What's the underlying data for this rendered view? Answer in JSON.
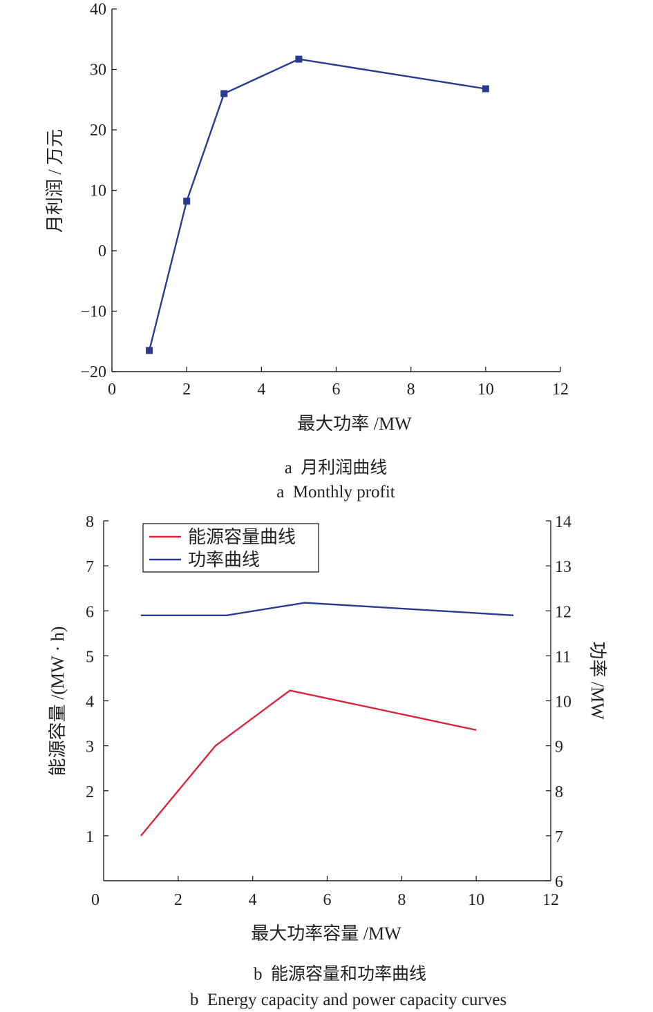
{
  "chart_data": [
    {
      "type": "line",
      "caption_cn": "a  月利润曲线",
      "caption_en": "a  Monthly profit",
      "xlabel": "最大功率 /MW",
      "ylabel": "月利润 / 万元",
      "xlim": [
        0,
        12
      ],
      "ylim": [
        -20,
        40
      ],
      "xticks": [
        "0",
        "2",
        "4",
        "6",
        "8",
        "10",
        "12"
      ],
      "yticks": [
        "−20",
        "−10",
        "0",
        "10",
        "20",
        "30",
        "40"
      ],
      "marker": "square",
      "color": "#2b3990",
      "series": [
        {
          "x": [
            1,
            2,
            3,
            5,
            10
          ],
          "y": [
            -16.5,
            8.2,
            26.0,
            31.7,
            26.8
          ]
        }
      ]
    },
    {
      "type": "line",
      "caption_cn": "b  能源容量和功率曲线",
      "caption_en": "b  Energy capacity and power capacity curves",
      "xlabel": "最大功率容量 /MW",
      "ylabel": "能源容量 /(MW · h)",
      "ylabel_right": "功率 /MW",
      "xlim": [
        0,
        12
      ],
      "ylim": [
        0,
        8
      ],
      "ylim_right": [
        6,
        14
      ],
      "xticks": [
        "0",
        "2",
        "4",
        "6",
        "8",
        "10",
        "12"
      ],
      "yticks": [
        "1",
        "2",
        "3",
        "4",
        "5",
        "6",
        "7",
        "8"
      ],
      "yticks_right": [
        "6",
        "7",
        "8",
        "9",
        "10",
        "11",
        "12",
        "13",
        "14"
      ],
      "legend_position": "top-left",
      "series": [
        {
          "name": "能源容量曲线",
          "axis": "left",
          "color": "#d7263d",
          "x": [
            1,
            3,
            5,
            10
          ],
          "y": [
            1.0,
            3.0,
            4.23,
            3.35
          ]
        },
        {
          "name": "功率曲线",
          "axis": "right",
          "color": "#2b3990",
          "x": [
            1,
            3.3,
            5.4,
            11
          ],
          "y": [
            11.9,
            11.9,
            12.18,
            11.9
          ]
        }
      ]
    }
  ]
}
